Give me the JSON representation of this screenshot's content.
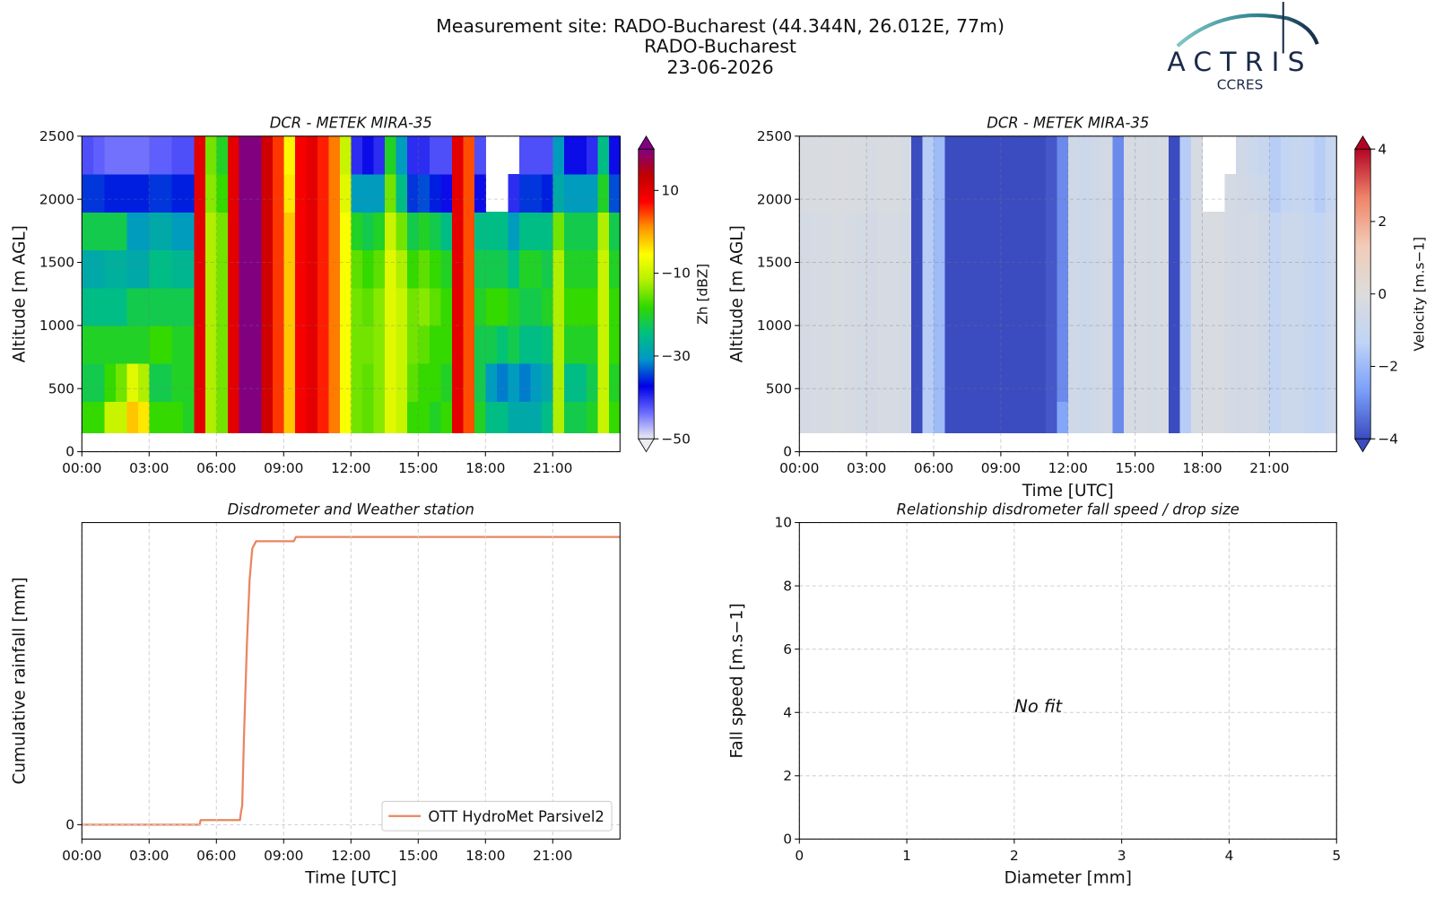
{
  "header": {
    "title": [
      "Measurement site: RADO-Bucharest (44.344N, 26.012E, 77m)",
      "RADO-Bucharest",
      "23-06-2026"
    ],
    "logo": {
      "name": "ACTRIS",
      "subtitle": "CCRES"
    }
  },
  "chart_data": [
    {
      "type": "heatmap",
      "title": "DCR - METEK MIRA-35",
      "ylabel": "Altitude [m AGL]",
      "zlabel": "Zh [dBZ]",
      "xlim": [
        0,
        24
      ],
      "xticks": [
        {
          "value": 0,
          "label": "00:00"
        },
        {
          "value": 3,
          "label": "03:00"
        },
        {
          "value": 6,
          "label": "06:00"
        },
        {
          "value": 9,
          "label": "09:00"
        },
        {
          "value": 12,
          "label": "12:00"
        },
        {
          "value": 15,
          "label": "15:00"
        },
        {
          "value": 18,
          "label": "18:00"
        },
        {
          "value": 21,
          "label": "21:00"
        }
      ],
      "ylim": [
        0,
        2500
      ],
      "yticks": [
        0,
        500,
        1000,
        1500,
        2000,
        2500
      ],
      "grid": true,
      "zlim": [
        -50,
        20
      ],
      "zticks": [
        {
          "value": -50,
          "label": "−50"
        },
        {
          "value": -30,
          "label": "−30"
        },
        {
          "value": -10,
          "label": "−10"
        },
        10
      ],
      "colormap": [
        "#ececf2",
        "#6a6aff",
        "#0000e6",
        "#0096c8",
        "#00c080",
        "#30d800",
        "#b4f000",
        "#ffff00",
        "#ff9600",
        "#ff0000",
        "#c00000",
        "#800080"
      ],
      "x": [
        0,
        0.5,
        1,
        1.5,
        2,
        2.5,
        3,
        3.5,
        4,
        4.5,
        5,
        5.5,
        6,
        6.5,
        7,
        7.5,
        8,
        8.5,
        9,
        9.5,
        10,
        10.5,
        11,
        11.5,
        12,
        12.5,
        13,
        13.5,
        14,
        14.5,
        15,
        15.5,
        16,
        16.5,
        17,
        17.5,
        18,
        18.5,
        19,
        19.5,
        20,
        20.5,
        21,
        21.5,
        22,
        22.5,
        23,
        23.5,
        24
      ],
      "y": [
        150,
        400,
        700,
        1000,
        1300,
        1600,
        1900,
        2200,
        2500
      ],
      "z": [
        [
          -18,
          -18,
          -10,
          -10,
          -2,
          -4,
          -18,
          -18,
          -18,
          -20,
          10,
          -12,
          -15,
          10,
          20,
          20,
          12,
          5,
          -2,
          8,
          10,
          6,
          2,
          -6,
          -15,
          -16,
          -14,
          -8,
          -10,
          -18,
          -18,
          -20,
          -18,
          10,
          4,
          -20,
          -25,
          -25,
          -28,
          -28,
          -28,
          -25,
          -12,
          -22,
          -22,
          -20,
          -10,
          -18
        ],
        [
          -22,
          -22,
          -18,
          -15,
          -8,
          -12,
          -22,
          -22,
          -20,
          -20,
          10,
          -12,
          -15,
          10,
          20,
          20,
          12,
          5,
          -2,
          8,
          10,
          6,
          2,
          -6,
          -15,
          -16,
          -14,
          -8,
          -10,
          -16,
          -18,
          -18,
          -20,
          10,
          4,
          -22,
          -30,
          -32,
          -30,
          -32,
          -30,
          -28,
          -12,
          -25,
          -25,
          -22,
          -10,
          -20
        ],
        [
          -20,
          -20,
          -20,
          -20,
          -20,
          -20,
          -18,
          -18,
          -20,
          -20,
          10,
          -12,
          -15,
          10,
          20,
          20,
          12,
          5,
          -2,
          8,
          10,
          6,
          2,
          -6,
          -15,
          -15,
          -14,
          -8,
          -10,
          -15,
          -16,
          -18,
          -18,
          10,
          4,
          -22,
          -22,
          -24,
          -22,
          -25,
          -25,
          -24,
          -12,
          -20,
          -20,
          -20,
          -10,
          -18
        ],
        [
          -25,
          -25,
          -25,
          -25,
          -22,
          -22,
          -22,
          -22,
          -22,
          -22,
          10,
          -12,
          -15,
          10,
          20,
          20,
          12,
          5,
          -2,
          8,
          10,
          6,
          2,
          -6,
          -15,
          -16,
          -14,
          -8,
          -10,
          -15,
          -14,
          -16,
          -18,
          10,
          4,
          -20,
          -18,
          -18,
          -20,
          -22,
          -22,
          -20,
          -12,
          -18,
          -18,
          -18,
          -10,
          -18
        ],
        [
          -28,
          -28,
          -27,
          -27,
          -28,
          -28,
          -25,
          -25,
          -26,
          -26,
          10,
          -12,
          -15,
          10,
          20,
          20,
          12,
          5,
          -2,
          8,
          10,
          6,
          2,
          -6,
          -16,
          -18,
          -16,
          -8,
          -12,
          -18,
          -16,
          -18,
          -20,
          10,
          4,
          -22,
          -22,
          -22,
          -25,
          -20,
          -20,
          -22,
          -12,
          -20,
          -20,
          -20,
          -10,
          -20
        ],
        [
          -22,
          -22,
          -22,
          -22,
          -30,
          -30,
          -28,
          -28,
          -30,
          -30,
          10,
          -12,
          -15,
          10,
          20,
          20,
          12,
          5,
          -2,
          8,
          10,
          6,
          2,
          -6,
          -20,
          -22,
          -20,
          -10,
          -15,
          -22,
          -20,
          -22,
          -25,
          10,
          4,
          -25,
          -25,
          -25,
          -30,
          -25,
          -25,
          -25,
          -15,
          -22,
          -22,
          -22,
          -12,
          -22
        ],
        [
          -35,
          -35,
          -36,
          -36,
          -36,
          -36,
          -35,
          -35,
          -36,
          -36,
          10,
          -14,
          -18,
          10,
          20,
          20,
          12,
          5,
          -4,
          8,
          10,
          6,
          2,
          -8,
          -30,
          -30,
          -30,
          -15,
          -25,
          -35,
          -34,
          -36,
          -38,
          10,
          4,
          -38,
          null,
          null,
          -40,
          -35,
          -35,
          -36,
          -28,
          -30,
          -30,
          -30,
          -20,
          -34
        ],
        [
          -42,
          -43,
          -44,
          -44,
          -44,
          -44,
          -43,
          -43,
          -42,
          -42,
          10,
          -15,
          -20,
          10,
          20,
          20,
          12,
          5,
          -5,
          8,
          10,
          6,
          2,
          -10,
          -40,
          -38,
          -40,
          -20,
          -30,
          -40,
          -40,
          -42,
          -42,
          10,
          4,
          -42,
          null,
          null,
          null,
          -42,
          -42,
          -42,
          -30,
          -38,
          -38,
          -40,
          -25,
          -38
        ]
      ]
    },
    {
      "type": "heatmap",
      "title": "DCR - METEK MIRA-35",
      "xlabel": "Time [UTC]",
      "ylabel": "Altitude [m AGL]",
      "zlabel": "Velocity [m.s−1]",
      "xlim": [
        0,
        24
      ],
      "xticks": [
        {
          "value": 0,
          "label": "00:00"
        },
        {
          "value": 3,
          "label": "03:00"
        },
        {
          "value": 6,
          "label": "06:00"
        },
        {
          "value": 9,
          "label": "09:00"
        },
        {
          "value": 12,
          "label": "12:00"
        },
        {
          "value": 15,
          "label": "15:00"
        },
        {
          "value": 18,
          "label": "18:00"
        },
        {
          "value": 21,
          "label": "21:00"
        }
      ],
      "ylim": [
        0,
        2500
      ],
      "yticks": [
        0,
        500,
        1000,
        1500,
        2000,
        2500
      ],
      "grid": true,
      "zlim": [
        -4,
        4
      ],
      "zticks": [
        {
          "value": -4,
          "label": "−4"
        },
        {
          "value": -2,
          "label": "−2"
        },
        0,
        2,
        4
      ],
      "colormap": [
        "#3b4cc0",
        "#7b9ff9",
        "#c0d4f5",
        "#dcdcdc",
        "#f2cbb7",
        "#ee8468",
        "#b40426"
      ],
      "x": [
        0,
        0.5,
        1,
        1.5,
        2,
        2.5,
        3,
        3.5,
        4,
        4.5,
        5,
        5.5,
        6,
        6.5,
        7,
        7.5,
        8,
        8.5,
        9,
        9.5,
        10,
        10.5,
        11,
        11.5,
        12,
        12.5,
        13,
        13.5,
        14,
        14.5,
        15,
        15.5,
        16,
        16.5,
        17,
        17.5,
        18,
        18.5,
        19,
        19.5,
        20,
        20.5,
        21,
        21.5,
        22,
        22.5,
        23,
        23.5,
        24
      ],
      "y": [
        150,
        400,
        700,
        1000,
        1300,
        1600,
        1900,
        2200,
        2500
      ],
      "z": [
        [
          -0.4,
          -0.3,
          -0.3,
          -0.2,
          -0.3,
          -0.4,
          -0.5,
          -0.3,
          -0.3,
          -0.4,
          -4,
          -1.5,
          -2,
          -4,
          -4,
          -4,
          -4,
          -4,
          -4,
          -4,
          -4,
          -4,
          -3.8,
          -2.5,
          -0.6,
          -0.8,
          -0.6,
          -0.5,
          -3,
          -0.3,
          -0.3,
          -0.4,
          -0.3,
          -4,
          -1.5,
          -0.3,
          -0.2,
          -0.2,
          -0.4,
          -0.5,
          -0.4,
          -0.6,
          -1.2,
          -0.8,
          -0.8,
          -1,
          -1.2,
          -0.8
        ],
        [
          -0.4,
          -0.3,
          -0.3,
          -0.2,
          -0.3,
          -0.4,
          -0.5,
          -0.3,
          -0.3,
          -0.4,
          -4,
          -1.5,
          -2,
          -4,
          -4,
          -4,
          -4,
          -4,
          -4,
          -4,
          -4,
          -4,
          -3.8,
          -3,
          -0.6,
          -0.8,
          -0.6,
          -0.5,
          -3,
          -0.3,
          -0.3,
          -0.4,
          -0.3,
          -4,
          -1.5,
          -0.3,
          -0.2,
          -0.2,
          -0.4,
          -0.5,
          -0.4,
          -0.6,
          -1.2,
          -0.8,
          -0.8,
          -1,
          -1.2,
          -0.8
        ],
        [
          -0.4,
          -0.3,
          -0.3,
          -0.2,
          -0.3,
          -0.4,
          -0.5,
          -0.3,
          -0.3,
          -0.4,
          -4,
          -1.5,
          -2,
          -4,
          -4,
          -4,
          -4,
          -4,
          -4,
          -4,
          -4,
          -4,
          -3.8,
          -3,
          -0.6,
          -0.8,
          -0.6,
          -0.5,
          -3,
          -0.3,
          -0.3,
          -0.4,
          -0.3,
          -4,
          -1.5,
          -0.3,
          -0.2,
          -0.2,
          -0.4,
          -0.5,
          -0.4,
          -0.6,
          -1.2,
          -0.8,
          -0.8,
          -1,
          -1.2,
          -0.8
        ],
        [
          -0.4,
          -0.3,
          -0.3,
          -0.2,
          -0.3,
          -0.4,
          -0.5,
          -0.3,
          -0.3,
          -0.4,
          -4,
          -1.5,
          -2,
          -4,
          -4,
          -4,
          -4,
          -4,
          -4,
          -4,
          -4,
          -4,
          -3.8,
          -3,
          -0.6,
          -0.8,
          -0.6,
          -0.5,
          -3,
          -0.3,
          -0.3,
          -0.4,
          -0.3,
          -4,
          -1.5,
          -0.3,
          -0.2,
          -0.2,
          -0.4,
          -0.5,
          -0.4,
          -0.6,
          -1.2,
          -0.8,
          -0.8,
          -1,
          -1.2,
          -0.8
        ],
        [
          -0.4,
          -0.3,
          -0.3,
          -0.2,
          -0.3,
          -0.4,
          -0.5,
          -0.3,
          -0.3,
          -0.4,
          -4,
          -1.5,
          -2,
          -4,
          -4,
          -4,
          -4,
          -4,
          -4,
          -4,
          -4,
          -4,
          -3.8,
          -3,
          -0.6,
          -0.8,
          -0.6,
          -0.5,
          -3,
          -0.3,
          -0.3,
          -0.4,
          -0.3,
          -4,
          -1.5,
          -0.3,
          -0.2,
          -0.2,
          -0.4,
          -0.5,
          -0.4,
          -0.6,
          -1.2,
          -0.8,
          -0.8,
          -1,
          -1.2,
          -0.8
        ],
        [
          -0.4,
          -0.3,
          -0.3,
          -0.2,
          -0.3,
          -0.4,
          -0.5,
          -0.3,
          -0.3,
          -0.4,
          -4,
          -1.5,
          -2,
          -4,
          -4,
          -4,
          -4,
          -4,
          -4,
          -4,
          -4,
          -4,
          -3.8,
          -3,
          -0.6,
          -0.8,
          -0.6,
          -0.5,
          -3,
          -0.3,
          -0.3,
          -0.4,
          -0.3,
          -4,
          -1.5,
          -0.3,
          -0.2,
          -0.2,
          -0.4,
          -0.5,
          -0.4,
          -0.6,
          -1.2,
          -0.8,
          -0.8,
          -1,
          -1.2,
          -0.8
        ],
        [
          -0.2,
          -0.2,
          -0.2,
          -0.1,
          -0.2,
          -0.2,
          -0.3,
          -0.2,
          -0.2,
          -0.3,
          -4,
          -1.5,
          -2,
          -4,
          -4,
          -4,
          -4,
          -4,
          -4,
          -4,
          -4,
          -4,
          -3.8,
          -3,
          -0.6,
          -0.8,
          -0.6,
          -0.5,
          -3,
          -0.3,
          -0.3,
          -0.4,
          -0.3,
          -4,
          -1.5,
          -0.3,
          null,
          null,
          -0.4,
          -0.5,
          -0.6,
          -0.8,
          -1.5,
          -1.2,
          -1,
          -1.2,
          -1.5,
          -1
        ],
        [
          -0.2,
          -0.2,
          -0.2,
          -0.1,
          -0.2,
          -0.2,
          -0.3,
          -0.2,
          -0.2,
          -0.3,
          -4,
          -1.5,
          -2,
          -4,
          -4,
          -4,
          -4,
          -4,
          -4,
          -4,
          -4,
          -4,
          -3.8,
          -3,
          -0.6,
          -0.8,
          -0.6,
          -0.5,
          -3,
          -0.3,
          -0.3,
          -0.4,
          -0.3,
          -4,
          -1.5,
          -0.3,
          null,
          null,
          null,
          -0.6,
          -0.8,
          -1,
          -1.5,
          -1.2,
          -1,
          -1.2,
          -1.5,
          -1
        ]
      ]
    },
    {
      "type": "line",
      "title": "Disdrometer and Weather station",
      "xlabel": "Time [UTC]",
      "ylabel": "Cumulative rainfall [mm]",
      "xlim": [
        0,
        24
      ],
      "xticks": [
        {
          "value": 0,
          "label": "00:00"
        },
        {
          "value": 3,
          "label": "03:00"
        },
        {
          "value": 6,
          "label": "06:00"
        },
        {
          "value": 9,
          "label": "09:00"
        },
        {
          "value": 12,
          "label": "12:00"
        },
        {
          "value": 15,
          "label": "15:00"
        },
        {
          "value": 18,
          "label": "18:00"
        },
        {
          "value": 21,
          "label": "21:00"
        }
      ],
      "ylim": [
        -1,
        21
      ],
      "yticks": [
        0
      ],
      "grid": true,
      "legend": "lower right",
      "series": [
        {
          "name": "OTT HydroMet Parsivel2",
          "color": "#e9865f",
          "x": [
            0,
            5.25,
            5.3,
            7.05,
            7.1,
            7.15,
            7.23,
            7.36,
            7.48,
            7.6,
            7.77,
            9.45,
            9.55,
            24
          ],
          "values": [
            0,
            0,
            0.32,
            0.32,
            0.9,
            1.3,
            6.1,
            12.5,
            17,
            19.2,
            19.7,
            19.7,
            20,
            20
          ]
        }
      ]
    },
    {
      "type": "scatter",
      "title": "Relationship disdrometer fall speed / drop size",
      "xlabel": "Diameter [mm]",
      "ylabel": "Fall speed [m.s−1]",
      "xlim": [
        0,
        5
      ],
      "xticks": [
        0,
        1,
        2,
        3,
        4,
        5
      ],
      "ylim": [
        0,
        10
      ],
      "yticks": [
        0,
        2,
        4,
        6,
        8,
        10
      ],
      "grid": true,
      "annotation": "No fit"
    }
  ]
}
